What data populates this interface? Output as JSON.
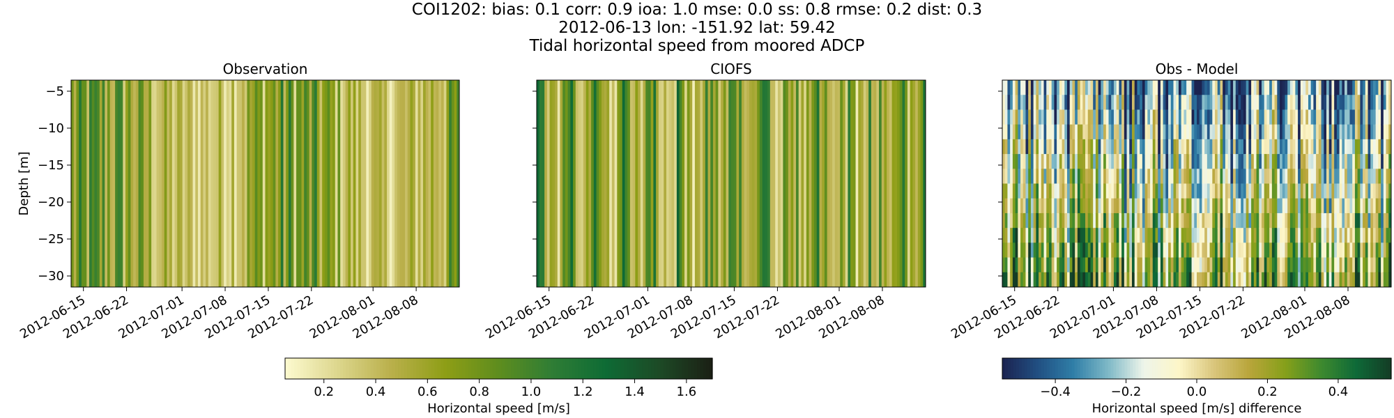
{
  "figure": {
    "title_lines": [
      "COI1202: bias: 0.1  corr: 0.9  ioa: 1.0  mse: 0.0  ss: 0.8  rmse: 0.2  dist: 0.3",
      "2012-06-13 lon: -151.92 lat: 59.42",
      "Tidal horizontal speed from moored ADCP"
    ]
  },
  "colors": {
    "speed_cmap": [
      "#fdfad0",
      "#dcd68c",
      "#b9af4a",
      "#8e9e16",
      "#5e8d1e",
      "#2f7d35",
      "#0e6b35",
      "#1d4a26",
      "#1b1f14"
    ],
    "diff_cmap": [
      "#1b2350",
      "#214f82",
      "#2f7ea7",
      "#7fb9c7",
      "#eef5ea",
      "#fdf6c8",
      "#d9c57b",
      "#b8a53a",
      "#86a01a",
      "#3f8a2e",
      "#0e6a38",
      "#143c25"
    ]
  },
  "chart_data": [
    {
      "type": "heatmap",
      "title": "Observation",
      "xlabel": "",
      "ylabel": "Depth [m]",
      "x_range": [
        "2012-06-13",
        "2012-08-15"
      ],
      "xticks": [
        "2012-06-15",
        "2012-06-22",
        "2012-07-01",
        "2012-07-08",
        "2012-07-15",
        "2012-07-22",
        "2012-08-01",
        "2012-08-08"
      ],
      "ylim": [
        -31.5,
        -3.5
      ],
      "yticks": [
        -5,
        -10,
        -15,
        -20,
        -25,
        -30
      ],
      "colorbar": "speed",
      "value_range": [
        0.05,
        1.7
      ],
      "note": "vertical striping of tidal speed through the full water column"
    },
    {
      "type": "heatmap",
      "title": "CIOFS",
      "xlabel": "",
      "ylabel": "",
      "x_range": [
        "2012-06-13",
        "2012-08-15"
      ],
      "xticks": [
        "2012-06-15",
        "2012-06-22",
        "2012-07-01",
        "2012-07-08",
        "2012-07-15",
        "2012-07-22",
        "2012-08-01",
        "2012-08-08"
      ],
      "ylim": [
        -31.5,
        -3.5
      ],
      "yticks": [
        -5,
        -10,
        -15,
        -20,
        -25,
        -30
      ],
      "colorbar": "speed",
      "value_range": [
        0.05,
        1.7
      ]
    },
    {
      "type": "heatmap",
      "title": "Obs - Model",
      "xlabel": "",
      "ylabel": "",
      "x_range": [
        "2012-06-13",
        "2012-08-15"
      ],
      "xticks": [
        "2012-06-15",
        "2012-06-22",
        "2012-07-01",
        "2012-07-08",
        "2012-07-15",
        "2012-07-22",
        "2012-08-01",
        "2012-08-08"
      ],
      "ylim": [
        -31.5,
        -3.5
      ],
      "yticks": [
        -5,
        -10,
        -15,
        -20,
        -25,
        -30
      ],
      "colorbar": "difference",
      "value_range": [
        -0.55,
        0.55
      ]
    }
  ],
  "colorbars": {
    "speed": {
      "label": "Horizontal speed [m/s]",
      "range": [
        0.05,
        1.7
      ],
      "ticks": [
        "0.2",
        "0.4",
        "0.6",
        "0.8",
        "1.0",
        "1.2",
        "1.4",
        "1.6"
      ]
    },
    "difference": {
      "label": "Horizontal speed [m/s] difference",
      "range": [
        -0.55,
        0.55
      ],
      "ticks": [
        "−0.4",
        "−0.2",
        "0.0",
        "0.2",
        "0.4"
      ]
    }
  }
}
